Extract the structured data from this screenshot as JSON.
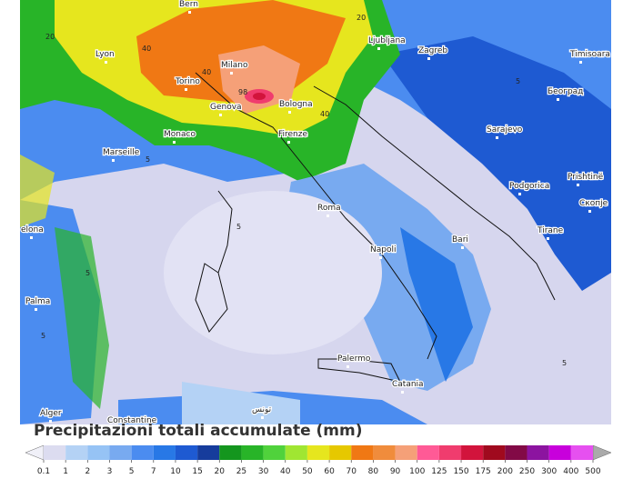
{
  "map": {
    "cities": [
      "Bern",
      "Ljubljana",
      "Zagreb",
      "Timisoara",
      "Lyon",
      "Milano",
      "Torino",
      "Genova",
      "Bologna",
      "Београд",
      "Sarajevo",
      "Monaco",
      "Firenze",
      "Marseille",
      "Podgorica",
      "Prishtinë",
      "Roma",
      "Скопје",
      "Tirane",
      "elona",
      "Bari",
      "Napoli",
      "Palma",
      "Palermo",
      "Catania",
      "Alger",
      "Constantine",
      "تونس"
    ],
    "contour_labels": [
      20,
      20,
      40,
      40,
      40,
      98,
      5,
      5,
      5,
      5,
      5,
      5
    ]
  },
  "colorbar": {
    "title": "Precipitazioni totali accumulate (mm)",
    "ticks": [
      0.1,
      1,
      2,
      3,
      5,
      7,
      10,
      15,
      20,
      25,
      30,
      40,
      50,
      60,
      70,
      80,
      90,
      100,
      125,
      150,
      175,
      200,
      250,
      300,
      400,
      500
    ],
    "colors": [
      "#f0f0f8",
      "#dcdcf0",
      "#b4d2f5",
      "#96c3f5",
      "#78aaf0",
      "#4b8cf0",
      "#2878e6",
      "#1e5ad2",
      "#163c9c",
      "#14961e",
      "#28b428",
      "#50d23c",
      "#a0e632",
      "#e6e61e",
      "#e6c800",
      "#f07814",
      "#f08c3c",
      "#f5a078",
      "#ff5a96",
      "#f03c6e",
      "#d2143c",
      "#a00a1e",
      "#820a46",
      "#8c14a0",
      "#c800dc",
      "#e650f0",
      "#f0a0f0",
      "#f5d2f5",
      "#aaaaaa"
    ]
  }
}
